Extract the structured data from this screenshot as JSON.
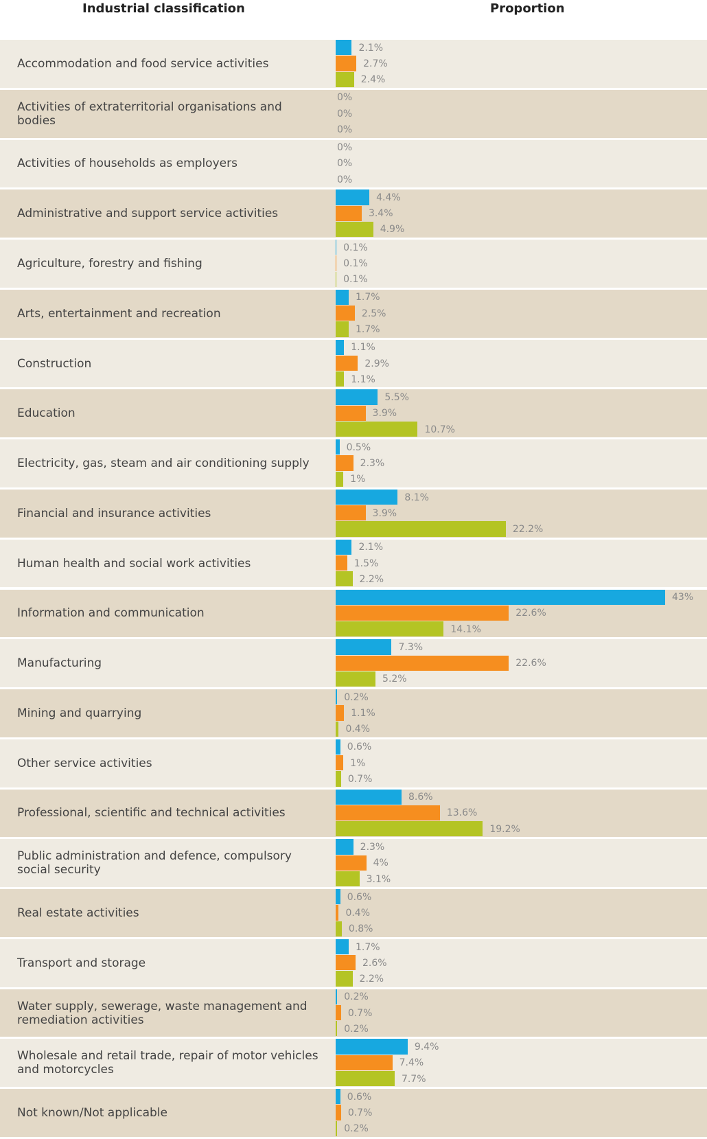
{
  "chart_data": {
    "type": "bar",
    "orientation": "horizontal",
    "headers": [
      "Industrial classification",
      "Proportion"
    ],
    "categories": [
      "Accommodation and food service activities",
      "Activities of extraterritorial organisations and bodies",
      "Activities of households as employers",
      "Administrative and support service activities",
      "Agriculture, forestry and fishing",
      "Arts, entertainment and recreation",
      "Construction",
      "Education",
      "Electricity, gas, steam and air conditioning supply",
      "Financial and insurance activities",
      "Human health and social work activities",
      "Information and communication",
      "Manufacturing",
      "Mining and quarrying",
      "Other service activities",
      "Professional, scientific and technical activities",
      "Public administration and defence, compulsory social security",
      "Real estate activities",
      "Transport and storage",
      "Water supply, sewerage, waste management and remediation activities",
      "Wholesale and retail trade, repair of motor vehicles and motorcycles",
      "Not known/Not applicable"
    ],
    "row_colors": [
      "#efebe2",
      "#e3d9c7"
    ],
    "series": [
      {
        "color": "#17a8e0",
        "values": [
          2.1,
          0,
          0,
          4.4,
          0.1,
          1.7,
          1.1,
          5.5,
          0.5,
          8.1,
          2.1,
          43,
          7.3,
          0.2,
          0.6,
          8.6,
          2.3,
          0.6,
          1.7,
          0.2,
          9.4,
          0.6
        ],
        "value_labels": [
          "2.1%",
          "0%",
          "0%",
          "4.4%",
          "0.1%",
          "1.7%",
          "1.1%",
          "5.5%",
          "0.5%",
          "8.1%",
          "2.1%",
          "43%",
          "7.3%",
          "0.2%",
          "0.6%",
          "8.6%",
          "2.3%",
          "0.6%",
          "1.7%",
          "0.2%",
          "9.4%",
          "0.6%"
        ]
      },
      {
        "color": "#f68e1f",
        "values": [
          2.7,
          0,
          0,
          3.4,
          0.1,
          2.5,
          2.9,
          3.9,
          2.3,
          3.9,
          1.5,
          22.6,
          22.6,
          1.1,
          1,
          13.6,
          4,
          0.4,
          2.6,
          0.7,
          7.4,
          0.7
        ],
        "value_labels": [
          "2.7%",
          "0%",
          "0%",
          "3.4%",
          "0.1%",
          "2.5%",
          "2.9%",
          "3.9%",
          "2.3%",
          "3.9%",
          "1.5%",
          "22.6%",
          "22.6%",
          "1.1%",
          "1%",
          "13.6%",
          "4%",
          "0.4%",
          "2.6%",
          "0.7%",
          "7.4%",
          "0.7%"
        ]
      },
      {
        "color": "#b4c424",
        "values": [
          2.4,
          0,
          0,
          4.9,
          0.1,
          1.7,
          1.1,
          10.7,
          1,
          22.2,
          2.2,
          14.1,
          5.2,
          0.4,
          0.7,
          19.2,
          3.1,
          0.8,
          2.2,
          0.2,
          7.7,
          0.2
        ],
        "value_labels": [
          "2.4%",
          "0%",
          "0%",
          "4.9%",
          "0.1%",
          "1.7%",
          "1.1%",
          "10.7%",
          "1%",
          "22.2%",
          "2.2%",
          "14.1%",
          "5.2%",
          "0.4%",
          "0.7%",
          "19.2%",
          "3.1%",
          "0.8%",
          "2.2%",
          "0.2%",
          "7.7%",
          "0.2%"
        ]
      }
    ]
  }
}
